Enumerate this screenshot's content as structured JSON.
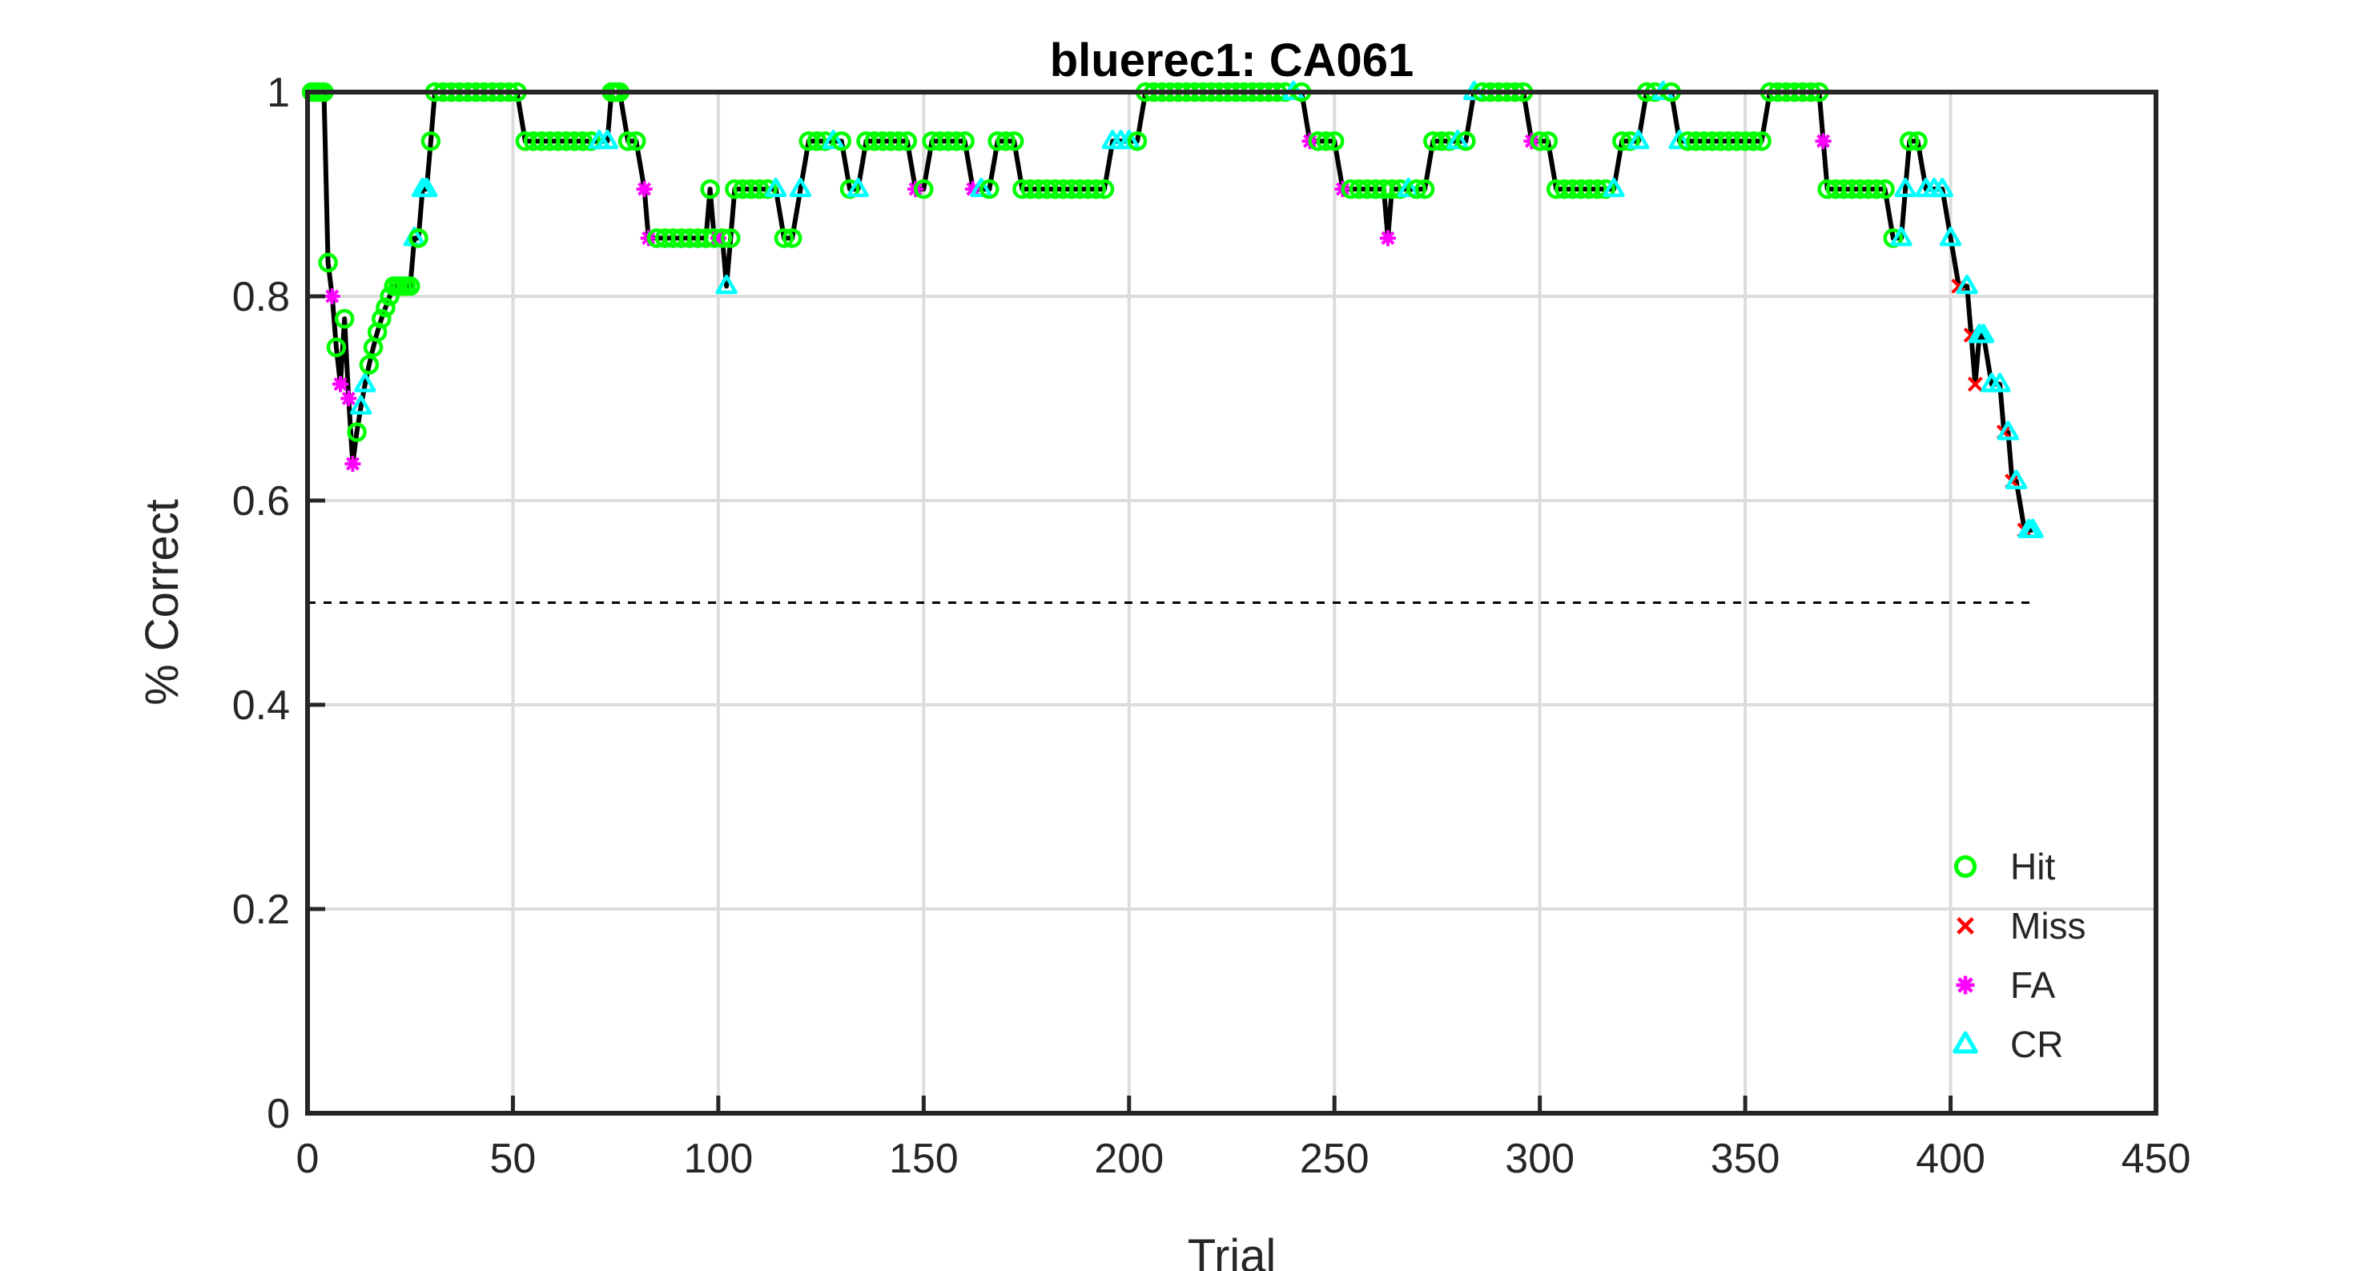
{
  "chart_data": {
    "type": "line",
    "title": "bluerec1: CA061",
    "xlabel": "Trial",
    "ylabel": "% Correct",
    "xlim": [
      0,
      450
    ],
    "ylim": [
      0,
      1
    ],
    "xticks": [
      0,
      50,
      100,
      150,
      200,
      250,
      300,
      350,
      400,
      450
    ],
    "yticks": [
      0,
      0.2,
      0.4,
      0.6,
      0.8,
      1
    ],
    "xtick_labels": [
      "0",
      "50",
      "100",
      "150",
      "200",
      "250",
      "300",
      "350",
      "400",
      "450"
    ],
    "ytick_labels": [
      "0",
      "0.2",
      "0.4",
      "0.6",
      "0.8",
      "1"
    ],
    "grid": true,
    "chance_line": {
      "y": 0.5,
      "x": [
        0,
        420
      ],
      "style": "dashed"
    },
    "legend_position": "bottom-right",
    "legend": [
      {
        "name": "Hit",
        "color": "#00ff00",
        "marker": "circle"
      },
      {
        "name": "Miss",
        "color": "#ff0000",
        "marker": "x"
      },
      {
        "name": "FA",
        "color": "#ff00ff",
        "marker": "asterisk"
      },
      {
        "name": "CR",
        "color": "#00ffff",
        "marker": "triangle"
      }
    ],
    "points": [
      [
        1,
        1,
        "H"
      ],
      [
        2,
        1,
        "H"
      ],
      [
        3,
        1,
        "H"
      ],
      [
        4,
        1,
        "H"
      ],
      [
        5,
        0.833,
        "H"
      ],
      [
        6,
        0.8,
        "F"
      ],
      [
        7,
        0.75,
        "H"
      ],
      [
        8,
        0.714,
        "F"
      ],
      [
        9,
        0.778,
        "H"
      ],
      [
        10,
        0.7,
        "F"
      ],
      [
        11,
        0.636,
        "F"
      ],
      [
        12,
        0.667,
        "H"
      ],
      [
        13,
        0.692,
        "C"
      ],
      [
        14,
        0.714,
        "C"
      ],
      [
        15,
        0.733,
        "H"
      ],
      [
        16,
        0.75,
        "H"
      ],
      [
        17,
        0.765,
        "H"
      ],
      [
        18,
        0.778,
        "H"
      ],
      [
        19,
        0.789,
        "H"
      ],
      [
        20,
        0.8,
        "H"
      ],
      [
        21,
        0.81,
        "H"
      ],
      [
        22,
        0.81,
        "H"
      ],
      [
        23,
        0.81,
        "H"
      ],
      [
        24,
        0.81,
        "H"
      ],
      [
        25,
        0.81,
        "H"
      ],
      [
        26,
        0.857,
        "C"
      ],
      [
        27,
        0.857,
        "H"
      ],
      [
        28,
        0.905,
        "C"
      ],
      [
        29,
        0.905,
        "C"
      ],
      [
        30,
        0.952,
        "H"
      ],
      [
        31,
        1,
        "H"
      ],
      [
        33,
        1,
        "H"
      ],
      [
        35,
        1,
        "H"
      ],
      [
        37,
        1,
        "H"
      ],
      [
        39,
        1,
        "H"
      ],
      [
        41,
        1,
        "H"
      ],
      [
        43,
        1,
        "H"
      ],
      [
        45,
        1,
        "H"
      ],
      [
        47,
        1,
        "H"
      ],
      [
        49,
        1,
        "H"
      ],
      [
        51,
        1,
        "H"
      ],
      [
        53,
        0.952,
        "H"
      ],
      [
        55,
        0.952,
        "H"
      ],
      [
        57,
        0.952,
        "H"
      ],
      [
        59,
        0.952,
        "H"
      ],
      [
        61,
        0.952,
        "H"
      ],
      [
        63,
        0.952,
        "H"
      ],
      [
        65,
        0.952,
        "H"
      ],
      [
        67,
        0.952,
        "H"
      ],
      [
        69,
        0.952,
        "H"
      ],
      [
        71,
        0.952,
        "C"
      ],
      [
        73,
        0.952,
        "C"
      ],
      [
        74,
        1,
        "H"
      ],
      [
        75,
        1,
        "H"
      ],
      [
        76,
        1,
        "H"
      ],
      [
        78,
        0.952,
        "H"
      ],
      [
        80,
        0.952,
        "H"
      ],
      [
        82,
        0.905,
        "F"
      ],
      [
        83,
        0.857,
        "F"
      ],
      [
        85,
        0.857,
        "H"
      ],
      [
        87,
        0.857,
        "H"
      ],
      [
        89,
        0.857,
        "H"
      ],
      [
        91,
        0.857,
        "H"
      ],
      [
        93,
        0.857,
        "H"
      ],
      [
        95,
        0.857,
        "H"
      ],
      [
        97,
        0.857,
        "H"
      ],
      [
        98,
        0.905,
        "H"
      ],
      [
        99,
        0.857,
        "H"
      ],
      [
        100,
        0.857,
        "F"
      ],
      [
        101,
        0.857,
        "H"
      ],
      [
        102,
        0.81,
        "C"
      ],
      [
        103,
        0.857,
        "H"
      ],
      [
        104,
        0.905,
        "H"
      ],
      [
        106,
        0.905,
        "H"
      ],
      [
        108,
        0.905,
        "H"
      ],
      [
        110,
        0.905,
        "H"
      ],
      [
        112,
        0.905,
        "H"
      ],
      [
        114,
        0.905,
        "C"
      ],
      [
        116,
        0.857,
        "H"
      ],
      [
        118,
        0.857,
        "H"
      ],
      [
        120,
        0.905,
        "C"
      ],
      [
        122,
        0.952,
        "H"
      ],
      [
        124,
        0.952,
        "H"
      ],
      [
        126,
        0.952,
        "H"
      ],
      [
        128,
        0.952,
        "C"
      ],
      [
        130,
        0.952,
        "H"
      ],
      [
        132,
        0.905,
        "H"
      ],
      [
        134,
        0.905,
        "C"
      ],
      [
        136,
        0.952,
        "H"
      ],
      [
        138,
        0.952,
        "H"
      ],
      [
        140,
        0.952,
        "H"
      ],
      [
        142,
        0.952,
        "H"
      ],
      [
        144,
        0.952,
        "H"
      ],
      [
        146,
        0.952,
        "H"
      ],
      [
        148,
        0.905,
        "F"
      ],
      [
        150,
        0.905,
        "H"
      ],
      [
        152,
        0.952,
        "H"
      ],
      [
        154,
        0.952,
        "H"
      ],
      [
        156,
        0.952,
        "H"
      ],
      [
        158,
        0.952,
        "H"
      ],
      [
        160,
        0.952,
        "H"
      ],
      [
        162,
        0.905,
        "F"
      ],
      [
        164,
        0.905,
        "C"
      ],
      [
        166,
        0.905,
        "H"
      ],
      [
        168,
        0.952,
        "H"
      ],
      [
        170,
        0.952,
        "H"
      ],
      [
        172,
        0.952,
        "H"
      ],
      [
        174,
        0.905,
        "H"
      ],
      [
        176,
        0.905,
        "H"
      ],
      [
        178,
        0.905,
        "H"
      ],
      [
        180,
        0.905,
        "H"
      ],
      [
        182,
        0.905,
        "H"
      ],
      [
        184,
        0.905,
        "H"
      ],
      [
        186,
        0.905,
        "H"
      ],
      [
        188,
        0.905,
        "H"
      ],
      [
        190,
        0.905,
        "H"
      ],
      [
        192,
        0.905,
        "H"
      ],
      [
        194,
        0.905,
        "H"
      ],
      [
        196,
        0.952,
        "C"
      ],
      [
        198,
        0.952,
        "C"
      ],
      [
        200,
        0.952,
        "C"
      ],
      [
        202,
        0.952,
        "H"
      ],
      [
        204,
        1,
        "H"
      ],
      [
        206,
        1,
        "H"
      ],
      [
        208,
        1,
        "H"
      ],
      [
        210,
        1,
        "H"
      ],
      [
        212,
        1,
        "H"
      ],
      [
        214,
        1,
        "H"
      ],
      [
        216,
        1,
        "H"
      ],
      [
        218,
        1,
        "H"
      ],
      [
        220,
        1,
        "H"
      ],
      [
        222,
        1,
        "H"
      ],
      [
        224,
        1,
        "H"
      ],
      [
        226,
        1,
        "H"
      ],
      [
        228,
        1,
        "H"
      ],
      [
        230,
        1,
        "H"
      ],
      [
        232,
        1,
        "H"
      ],
      [
        234,
        1,
        "H"
      ],
      [
        236,
        1,
        "H"
      ],
      [
        238,
        1,
        "H"
      ],
      [
        240,
        1,
        "C"
      ],
      [
        242,
        1,
        "H"
      ],
      [
        244,
        0.952,
        "F"
      ],
      [
        246,
        0.952,
        "H"
      ],
      [
        248,
        0.952,
        "H"
      ],
      [
        250,
        0.952,
        "H"
      ],
      [
        252,
        0.905,
        "F"
      ],
      [
        254,
        0.905,
        "H"
      ],
      [
        256,
        0.905,
        "H"
      ],
      [
        258,
        0.905,
        "H"
      ],
      [
        260,
        0.905,
        "H"
      ],
      [
        262,
        0.905,
        "H"
      ],
      [
        263,
        0.857,
        "F"
      ],
      [
        264,
        0.905,
        "H"
      ],
      [
        266,
        0.905,
        "H"
      ],
      [
        268,
        0.905,
        "C"
      ],
      [
        270,
        0.905,
        "H"
      ],
      [
        272,
        0.905,
        "H"
      ],
      [
        274,
        0.952,
        "H"
      ],
      [
        276,
        0.952,
        "H"
      ],
      [
        278,
        0.952,
        "H"
      ],
      [
        280,
        0.952,
        "C"
      ],
      [
        282,
        0.952,
        "H"
      ],
      [
        284,
        1,
        "C"
      ],
      [
        286,
        1,
        "H"
      ],
      [
        288,
        1,
        "H"
      ],
      [
        290,
        1,
        "H"
      ],
      [
        292,
        1,
        "H"
      ],
      [
        294,
        1,
        "H"
      ],
      [
        296,
        1,
        "H"
      ],
      [
        298,
        0.952,
        "F"
      ],
      [
        300,
        0.952,
        "H"
      ],
      [
        302,
        0.952,
        "H"
      ],
      [
        304,
        0.905,
        "H"
      ],
      [
        306,
        0.905,
        "H"
      ],
      [
        308,
        0.905,
        "H"
      ],
      [
        310,
        0.905,
        "H"
      ],
      [
        312,
        0.905,
        "H"
      ],
      [
        314,
        0.905,
        "H"
      ],
      [
        316,
        0.905,
        "H"
      ],
      [
        318,
        0.905,
        "C"
      ],
      [
        320,
        0.952,
        "H"
      ],
      [
        322,
        0.952,
        "H"
      ],
      [
        324,
        0.952,
        "C"
      ],
      [
        326,
        1,
        "H"
      ],
      [
        328,
        1,
        "H"
      ],
      [
        330,
        1,
        "C"
      ],
      [
        332,
        1,
        "H"
      ],
      [
        334,
        0.952,
        "C"
      ],
      [
        336,
        0.952,
        "H"
      ],
      [
        338,
        0.952,
        "H"
      ],
      [
        340,
        0.952,
        "H"
      ],
      [
        342,
        0.952,
        "H"
      ],
      [
        344,
        0.952,
        "H"
      ],
      [
        346,
        0.952,
        "H"
      ],
      [
        348,
        0.952,
        "H"
      ],
      [
        350,
        0.952,
        "H"
      ],
      [
        352,
        0.952,
        "H"
      ],
      [
        354,
        0.952,
        "H"
      ],
      [
        356,
        1,
        "H"
      ],
      [
        358,
        1,
        "H"
      ],
      [
        360,
        1,
        "H"
      ],
      [
        362,
        1,
        "H"
      ],
      [
        364,
        1,
        "H"
      ],
      [
        366,
        1,
        "H"
      ],
      [
        368,
        1,
        "H"
      ],
      [
        369,
        0.952,
        "F"
      ],
      [
        370,
        0.905,
        "H"
      ],
      [
        372,
        0.905,
        "H"
      ],
      [
        374,
        0.905,
        "H"
      ],
      [
        376,
        0.905,
        "H"
      ],
      [
        378,
        0.905,
        "H"
      ],
      [
        380,
        0.905,
        "H"
      ],
      [
        382,
        0.905,
        "H"
      ],
      [
        384,
        0.905,
        "H"
      ],
      [
        386,
        0.857,
        "H"
      ],
      [
        388,
        0.857,
        "C"
      ],
      [
        389,
        0.905,
        "C"
      ],
      [
        390,
        0.952,
        "H"
      ],
      [
        392,
        0.952,
        "H"
      ],
      [
        394,
        0.905,
        "C"
      ],
      [
        396,
        0.905,
        "C"
      ],
      [
        398,
        0.905,
        "C"
      ],
      [
        400,
        0.857,
        "C"
      ],
      [
        402,
        0.81,
        "M"
      ],
      [
        404,
        0.81,
        "C"
      ],
      [
        405,
        0.762,
        "M"
      ],
      [
        406,
        0.714,
        "M"
      ],
      [
        407,
        0.762,
        "C"
      ],
      [
        408,
        0.762,
        "C"
      ],
      [
        410,
        0.714,
        "C"
      ],
      [
        412,
        0.714,
        "C"
      ],
      [
        413,
        0.667,
        "M"
      ],
      [
        414,
        0.667,
        "C"
      ],
      [
        415,
        0.619,
        "M"
      ],
      [
        416,
        0.619,
        "C"
      ],
      [
        418,
        0.571,
        "M"
      ],
      [
        419,
        0.571,
        "C"
      ],
      [
        420,
        0.571,
        "C"
      ]
    ]
  }
}
